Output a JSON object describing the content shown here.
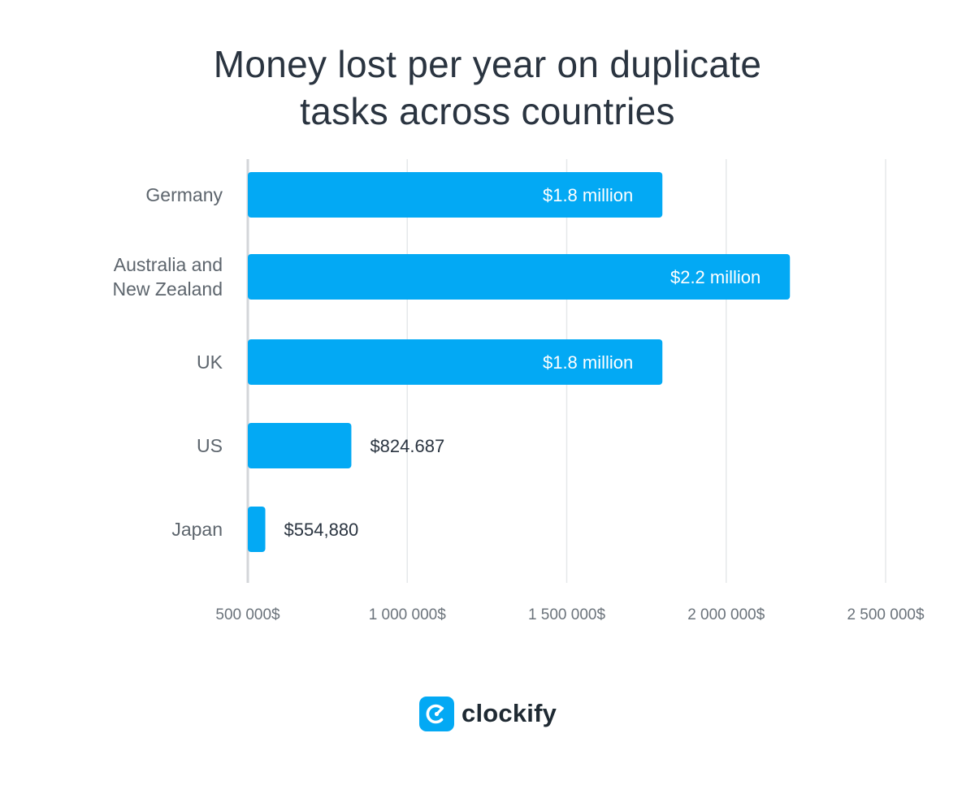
{
  "chart_data": {
    "type": "bar",
    "orientation": "horizontal",
    "title": [
      "Money lost per year on duplicate",
      "tasks across countries"
    ],
    "categories": [
      [
        "Germany"
      ],
      [
        "Australia and",
        "New Zealand"
      ],
      [
        "UK"
      ],
      [
        "US"
      ],
      [
        "Japan"
      ]
    ],
    "values": [
      1800000,
      2200000,
      1800000,
      824687,
      554880
    ],
    "data_labels": [
      "$1.8 million",
      "$2.2 million",
      "$1.8 million",
      "$824.687",
      "$554,880"
    ],
    "xticks": [
      500000,
      1000000,
      1500000,
      2000000,
      2500000
    ],
    "xtick_labels": [
      "500 000$",
      "1 000 000$",
      "1 500 000$",
      "2 000 000$",
      "2 500 000$"
    ],
    "xlim": [
      500000,
      2500000
    ],
    "grid": true,
    "bar_color": "#03a9f4",
    "label_inside_color": "#ffffff",
    "label_outside_color": "#2a3440"
  },
  "brand": {
    "name": "clockify",
    "color": "#03a9f4"
  }
}
